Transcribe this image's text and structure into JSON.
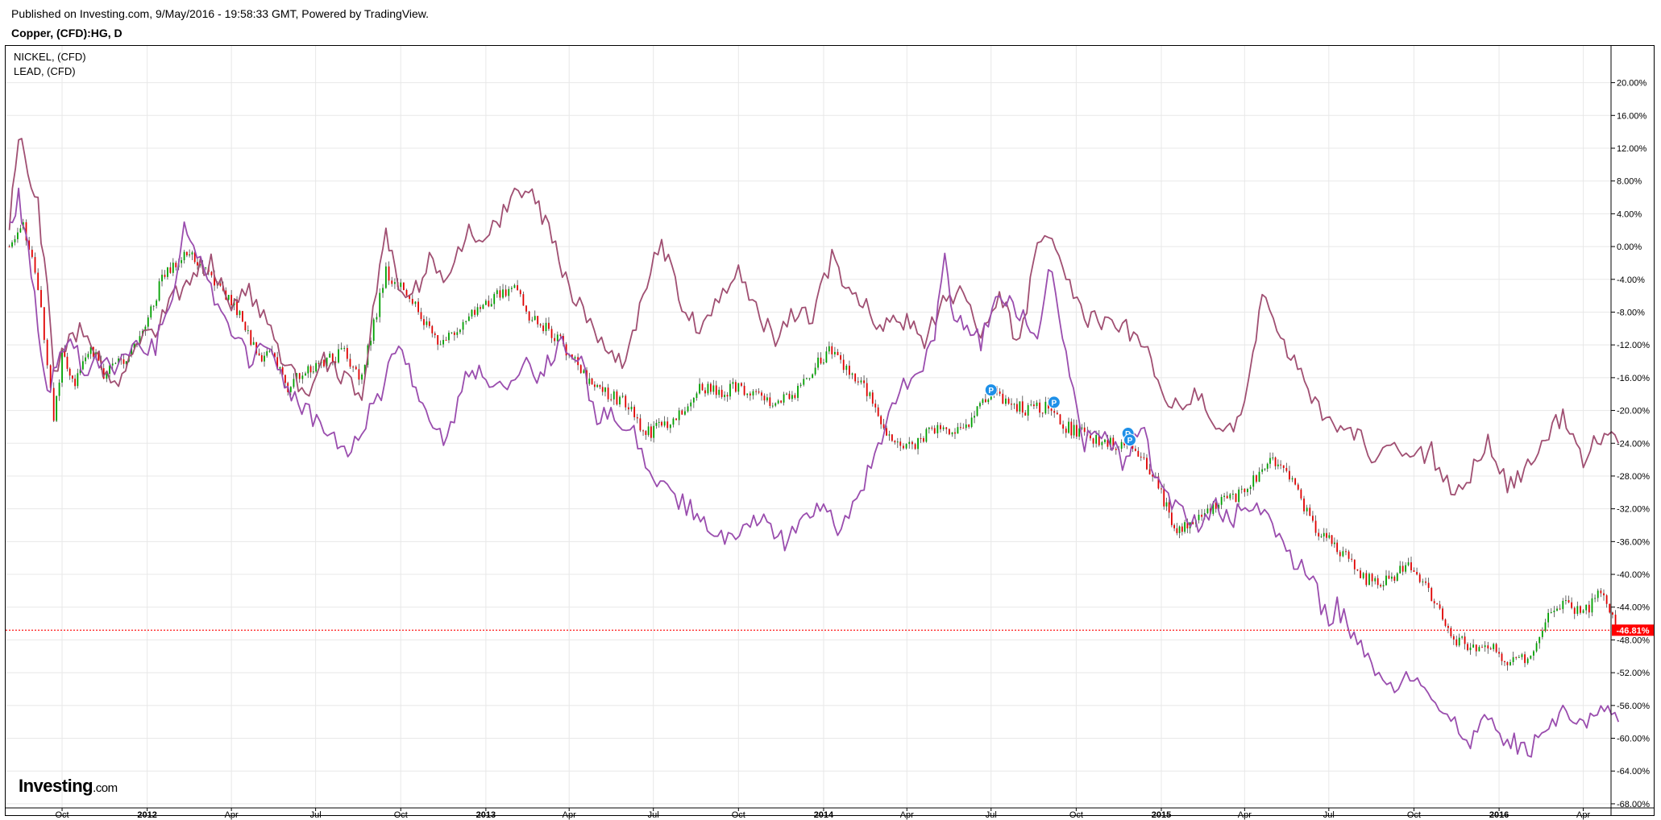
{
  "header": {
    "published": "Published on Investing.com, 9/May/2016 - 19:58:33 GMT, Powered by TradingView.",
    "symbol": "Copper, (CFD):HG, D"
  },
  "legend": [
    "NICKEL,  (CFD)",
    "LEAD,  (CFD)"
  ],
  "logo": {
    "main": "Investing",
    "suffix": ".com"
  },
  "chart_data": {
    "type": "line",
    "title": "Copper, (CFD):HG, D",
    "x_axis": {
      "ticks": [
        "Oct",
        "2012",
        "Apr",
        "Jul",
        "Oct",
        "2013",
        "Apr",
        "Jul",
        "Oct",
        "2014",
        "Apr",
        "Jul",
        "Oct",
        "2015",
        "Apr",
        "Jul",
        "Oct",
        "2016",
        "Apr"
      ],
      "tick_dates": [
        "2011-10",
        "2012-01",
        "2012-04",
        "2012-07",
        "2012-10",
        "2013-01",
        "2013-04",
        "2013-07",
        "2013-10",
        "2014-01",
        "2014-04",
        "2014-07",
        "2014-10",
        "2015-01",
        "2015-04",
        "2015-07",
        "2015-10",
        "2016-01",
        "2016-04"
      ],
      "range": [
        "2011-08",
        "2016-05"
      ]
    },
    "y_axis": {
      "ticks": [
        "20.00%",
        "16.00%",
        "12.00%",
        "8.00%",
        "4.00%",
        "0.00%",
        "-4.00%",
        "-8.00%",
        "-12.00%",
        "-16.00%",
        "-20.00%",
        "-24.00%",
        "-28.00%",
        "-32.00%",
        "-36.00%",
        "-40.00%",
        "-44.00%",
        "-48.00%",
        "-52.00%",
        "-56.00%",
        "-60.00%",
        "-64.00%",
        "-68.00%"
      ],
      "ylim": [
        -68.5,
        23.5
      ],
      "position": "right"
    },
    "grid": true,
    "last_value": {
      "label": "-46.81%",
      "value": -46.81,
      "color": "#ff0000"
    },
    "markers": [
      {
        "label": "P",
        "date": "2014-07-01",
        "value": -17.5
      },
      {
        "label": "P",
        "date": "2014-09-07",
        "value": -19.0
      },
      {
        "label": "D",
        "date": "2014-11-26",
        "value": -22.8
      },
      {
        "label": "P",
        "date": "2014-11-28",
        "value": -23.6
      }
    ],
    "colors": {
      "nickel": "#a04f72",
      "lead": "#9a4dae",
      "candle_up": "#00a000",
      "candle_down": "#e00000",
      "grid": "#e8e8e8",
      "marker": "#1e90e8"
    },
    "series": [
      {
        "key": "copper",
        "style": "candles",
        "x": [
          "2011-08-05",
          "2011-08-20",
          "2011-09-05",
          "2011-09-15",
          "2011-09-22",
          "2011-10-01",
          "2011-10-15",
          "2011-11-01",
          "2011-11-15",
          "2011-12-01",
          "2011-12-15",
          "2012-01-02",
          "2012-01-20",
          "2012-02-10",
          "2012-03-01",
          "2012-03-20",
          "2012-04-10",
          "2012-05-01",
          "2012-05-15",
          "2012-06-01",
          "2012-06-20",
          "2012-07-10",
          "2012-08-01",
          "2012-08-20",
          "2012-09-05",
          "2012-09-15",
          "2012-10-01",
          "2012-10-20",
          "2012-11-10",
          "2012-12-01",
          "2012-12-20",
          "2013-01-10",
          "2013-02-01",
          "2013-02-20",
          "2013-03-10",
          "2013-04-01",
          "2013-04-20",
          "2013-05-10",
          "2013-06-01",
          "2013-06-20",
          "2013-07-10",
          "2013-08-01",
          "2013-08-20",
          "2013-09-10",
          "2013-10-01",
          "2013-10-20",
          "2013-11-10",
          "2013-12-01",
          "2013-12-20",
          "2014-01-10",
          "2014-02-01",
          "2014-02-20",
          "2014-03-10",
          "2014-03-25",
          "2014-04-10",
          "2014-05-01",
          "2014-05-20",
          "2014-06-10",
          "2014-07-01",
          "2014-07-20",
          "2014-08-10",
          "2014-09-01",
          "2014-09-20",
          "2014-10-10",
          "2014-11-01",
          "2014-11-25",
          "2014-12-10",
          "2015-01-01",
          "2015-01-15",
          "2015-02-01",
          "2015-02-20",
          "2015-03-10",
          "2015-04-01",
          "2015-04-20",
          "2015-05-10",
          "2015-06-01",
          "2015-06-20",
          "2015-07-10",
          "2015-08-01",
          "2015-08-20",
          "2015-09-10",
          "2015-10-01",
          "2015-10-20",
          "2015-11-10",
          "2015-12-01",
          "2015-12-20",
          "2016-01-10",
          "2016-02-01",
          "2016-02-20",
          "2016-03-10",
          "2016-04-01",
          "2016-04-20",
          "2016-05-09"
        ],
        "values": [
          0,
          3,
          -5,
          -14,
          -22,
          -13,
          -17,
          -12,
          -16,
          -14,
          -13,
          -9,
          -3,
          -1,
          -2,
          -5,
          -8,
          -14,
          -13,
          -17,
          -15,
          -14,
          -13,
          -16,
          -8,
          -3,
          -5,
          -8,
          -12,
          -10,
          -8,
          -6,
          -5,
          -9,
          -10,
          -13,
          -16,
          -18,
          -19,
          -23,
          -22,
          -20,
          -17,
          -18,
          -17,
          -18,
          -19,
          -18,
          -15,
          -12.5,
          -16,
          -18,
          -23,
          -24.5,
          -24,
          -22,
          -23,
          -21,
          -17.5,
          -19,
          -20,
          -19.5,
          -22,
          -23,
          -24,
          -24.5,
          -26,
          -30,
          -35,
          -34,
          -32,
          -31,
          -30,
          -27,
          -26,
          -31,
          -35,
          -36.5,
          -40,
          -41,
          -40,
          -39,
          -43,
          -47.5,
          -49,
          -48.5,
          -51,
          -50,
          -46,
          -43,
          -45,
          -42,
          -46.81
        ]
      },
      {
        "key": "nickel",
        "style": "line",
        "x": [
          "2011-08-05",
          "2011-08-15",
          "2011-08-25",
          "2011-09-05",
          "2011-09-15",
          "2011-09-22",
          "2011-10-05",
          "2011-10-20",
          "2011-11-10",
          "2011-12-01",
          "2011-12-20",
          "2012-01-10",
          "2012-02-01",
          "2012-02-20",
          "2012-03-10",
          "2012-04-01",
          "2012-04-20",
          "2012-05-10",
          "2012-06-01",
          "2012-06-20",
          "2012-07-10",
          "2012-08-01",
          "2012-08-20",
          "2012-09-05",
          "2012-09-15",
          "2012-09-25",
          "2012-10-10",
          "2012-11-01",
          "2012-11-20",
          "2012-12-10",
          "2013-01-01",
          "2013-01-20",
          "2013-02-05",
          "2013-02-20",
          "2013-03-10",
          "2013-04-01",
          "2013-04-20",
          "2013-05-10",
          "2013-06-01",
          "2013-06-20",
          "2013-07-10",
          "2013-08-01",
          "2013-08-20",
          "2013-09-10",
          "2013-10-01",
          "2013-10-20",
          "2013-11-10",
          "2013-12-01",
          "2013-12-20",
          "2014-01-10",
          "2014-02-01",
          "2014-02-20",
          "2014-03-10",
          "2014-04-01",
          "2014-04-20",
          "2014-05-10",
          "2014-06-01",
          "2014-06-20",
          "2014-07-10",
          "2014-08-01",
          "2014-08-20",
          "2014-09-05",
          "2014-09-20",
          "2014-10-10",
          "2014-11-01",
          "2014-11-20",
          "2014-12-10",
          "2015-01-01",
          "2015-01-20",
          "2015-02-10",
          "2015-03-01",
          "2015-03-20",
          "2015-04-01",
          "2015-04-10",
          "2015-04-20",
          "2015-05-10",
          "2015-06-01",
          "2015-06-20",
          "2015-07-10",
          "2015-08-01",
          "2015-08-20",
          "2015-09-10",
          "2015-10-01",
          "2015-10-20",
          "2015-11-10",
          "2015-12-01",
          "2015-12-20",
          "2016-01-10",
          "2016-02-01",
          "2016-02-20",
          "2016-03-10",
          "2016-04-01",
          "2016-04-20",
          "2016-05-09"
        ],
        "values": [
          2,
          14,
          9,
          5,
          -5,
          -16,
          -12,
          -10,
          -14,
          -17,
          -11,
          -10,
          -6,
          -3,
          -2,
          -8,
          -5,
          -10,
          -15,
          -18,
          -14,
          -16,
          -19,
          -5,
          2,
          -3,
          -7,
          -2,
          -5,
          2,
          1,
          4,
          7,
          6,
          2,
          -5,
          -9,
          -13,
          -14,
          -6,
          1,
          -8,
          -10,
          -6,
          -3,
          -8,
          -11,
          -8,
          -9,
          -1,
          -6,
          -8,
          -10,
          -9,
          -12,
          -6,
          -6,
          -10,
          -6,
          -12,
          0,
          1,
          -4,
          -9,
          -9,
          -10,
          -11,
          -18,
          -20,
          -18,
          -21,
          -23,
          -19,
          -13,
          -6,
          -12,
          -15,
          -20,
          -22,
          -23,
          -26,
          -24,
          -26,
          -25,
          -30,
          -28,
          -24,
          -29,
          -27,
          -23,
          -21,
          -26,
          -23,
          -24
        ]
      },
      {
        "key": "lead",
        "style": "line",
        "x": [
          "2011-08-05",
          "2011-08-15",
          "2011-08-25",
          "2011-09-05",
          "2011-09-15",
          "2011-09-25",
          "2011-10-10",
          "2011-10-25",
          "2011-11-10",
          "2011-12-01",
          "2011-12-20",
          "2012-01-10",
          "2012-02-01",
          "2012-02-10",
          "2012-02-20",
          "2012-03-10",
          "2012-04-01",
          "2012-04-20",
          "2012-05-10",
          "2012-06-01",
          "2012-06-20",
          "2012-07-10",
          "2012-08-01",
          "2012-08-20",
          "2012-09-10",
          "2012-09-25",
          "2012-10-10",
          "2012-11-01",
          "2012-11-20",
          "2012-12-10",
          "2013-01-01",
          "2013-01-20",
          "2013-02-10",
          "2013-03-01",
          "2013-03-20",
          "2013-04-10",
          "2013-05-01",
          "2013-05-20",
          "2013-06-10",
          "2013-07-01",
          "2013-07-20",
          "2013-08-10",
          "2013-09-01",
          "2013-09-20",
          "2013-10-10",
          "2013-11-01",
          "2013-11-20",
          "2013-12-10",
          "2014-01-01",
          "2014-01-20",
          "2014-02-10",
          "2014-03-01",
          "2014-03-20",
          "2014-04-10",
          "2014-05-01",
          "2014-05-12",
          "2014-05-22",
          "2014-06-05",
          "2014-06-20",
          "2014-07-10",
          "2014-08-01",
          "2014-08-20",
          "2014-09-05",
          "2014-09-20",
          "2014-10-10",
          "2014-11-01",
          "2014-11-20",
          "2014-12-10",
          "2015-01-01",
          "2015-01-20",
          "2015-02-10",
          "2015-03-01",
          "2015-03-20",
          "2015-04-10",
          "2015-05-01",
          "2015-05-20",
          "2015-06-10",
          "2015-07-01",
          "2015-07-10",
          "2015-08-01",
          "2015-08-20",
          "2015-09-10",
          "2015-10-01",
          "2015-10-20",
          "2015-11-10",
          "2015-12-01",
          "2015-12-20",
          "2016-01-10",
          "2016-02-01",
          "2016-02-20",
          "2016-03-10",
          "2016-04-01",
          "2016-04-20",
          "2016-05-09"
        ],
        "values": [
          3,
          6,
          0,
          -10,
          -18,
          -14,
          -10,
          -16,
          -14,
          -15,
          -12,
          -12,
          -5,
          4,
          0,
          -5,
          -10,
          -14,
          -12,
          -18,
          -20,
          -22,
          -25,
          -22,
          -18,
          -12,
          -15,
          -22,
          -24,
          -15,
          -16,
          -18,
          -14,
          -16,
          -12,
          -13,
          -21,
          -20,
          -23,
          -28,
          -30,
          -32,
          -34,
          -36,
          -33,
          -34,
          -36,
          -33,
          -32,
          -35,
          -30,
          -24,
          -18,
          -16,
          -11,
          0,
          -10,
          -9,
          -12,
          -5,
          -8,
          -10,
          -2,
          -14,
          -24,
          -22,
          -26,
          -22,
          -30,
          -32,
          -34,
          -32,
          -33,
          -31,
          -34,
          -38,
          -40,
          -46,
          -44,
          -48,
          -52,
          -54,
          -52,
          -55,
          -58,
          -60,
          -58,
          -60,
          -62,
          -59,
          -57,
          -59,
          -56,
          -58
        ]
      }
    ]
  }
}
